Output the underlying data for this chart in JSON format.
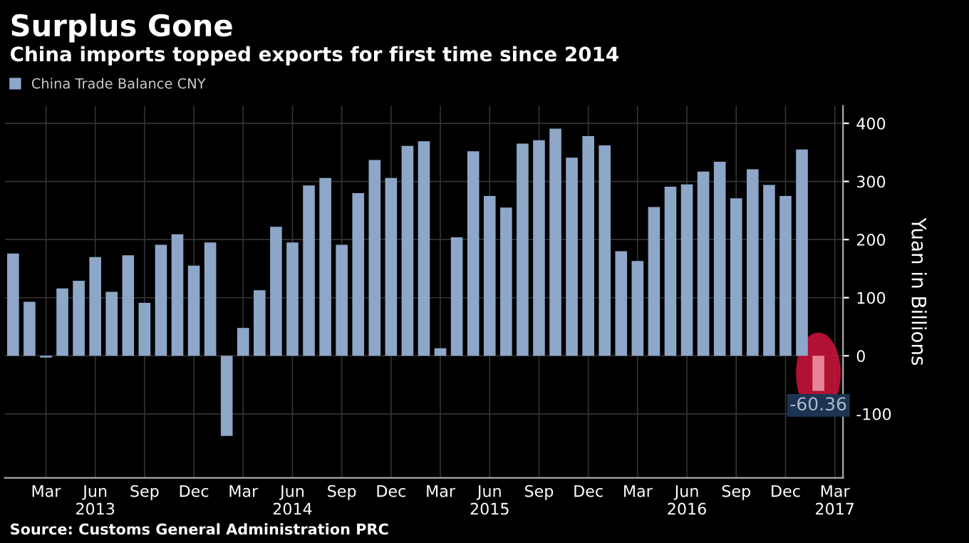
{
  "chart_data": {
    "type": "bar",
    "title": "Surplus Gone",
    "subtitle": "China imports topped exports for first time since 2014",
    "ylabel": "Yuan in Billions",
    "categories": [
      null,
      null,
      "Mar",
      null,
      null,
      "Jun\n2013",
      null,
      null,
      "Sep",
      null,
      null,
      "Dec",
      null,
      null,
      "Mar",
      null,
      null,
      "Jun\n2014",
      null,
      null,
      "Sep",
      null,
      null,
      "Dec",
      null,
      null,
      "Mar",
      null,
      null,
      "Jun\n2015",
      null,
      null,
      "Sep",
      null,
      null,
      "Dec",
      null,
      null,
      "Mar",
      null,
      null,
      "Jun\n2016",
      null,
      null,
      "Sep",
      null,
      null,
      "Dec",
      null,
      null,
      "Mar\n2017"
    ],
    "series": [
      {
        "name": "China Trade Balance CNY",
        "color": "#8ea6c8",
        "colors": [
          "#8ea6c8",
          "#8ea6c8",
          "#8ea6c8",
          "#8ea6c8",
          "#8ea6c8",
          "#8ea6c8",
          "#8ea6c8",
          "#8ea6c8",
          "#8ea6c8",
          "#8ea6c8",
          "#8ea6c8",
          "#8ea6c8",
          "#8ea6c8",
          "#8ea6c8",
          "#8ea6c8",
          "#8ea6c8",
          "#8ea6c8",
          "#8ea6c8",
          "#8ea6c8",
          "#8ea6c8",
          "#8ea6c8",
          "#8ea6c8",
          "#8ea6c8",
          "#8ea6c8",
          "#8ea6c8",
          "#8ea6c8",
          "#8ea6c8",
          "#8ea6c8",
          "#8ea6c8",
          "#8ea6c8",
          "#8ea6c8",
          "#8ea6c8",
          "#8ea6c8",
          "#8ea6c8",
          "#8ea6c8",
          "#8ea6c8",
          "#8ea6c8",
          "#8ea6c8",
          "#8ea6c8",
          "#8ea6c8",
          "#8ea6c8",
          "#8ea6c8",
          "#8ea6c8",
          "#8ea6c8",
          "#8ea6c8",
          "#8ea6c8",
          "#8ea6c8",
          "#8ea6c8",
          "#8ea6c8",
          "#e8849a",
          null
        ],
        "values": [
          176,
          93,
          -3,
          116,
          129,
          170,
          110,
          173,
          91,
          191,
          209,
          155,
          195,
          -138,
          48,
          113,
          222,
          195,
          293,
          306,
          191,
          280,
          337,
          306,
          361,
          369,
          13,
          204,
          352,
          275,
          255,
          365,
          371,
          391,
          341,
          378,
          362,
          180,
          163,
          256,
          291,
          295,
          317,
          334,
          271,
          321,
          294,
          275,
          355,
          -60.36,
          null
        ],
        "value_labels": [
          null,
          null,
          null,
          null,
          null,
          null,
          null,
          null,
          null,
          null,
          null,
          null,
          null,
          null,
          null,
          null,
          null,
          null,
          null,
          null,
          null,
          null,
          null,
          null,
          null,
          null,
          null,
          null,
          null,
          null,
          null,
          null,
          null,
          null,
          null,
          null,
          null,
          null,
          null,
          null,
          null,
          null,
          null,
          null,
          null,
          null,
          null,
          null,
          null,
          "-60.36",
          null
        ]
      }
    ],
    "ylim": [
      -210,
      430
    ],
    "yticks": [
      -100,
      0,
      100,
      200,
      300,
      400
    ],
    "grid": true,
    "legend": "top left",
    "annotations": [
      "Source: Customs General Administration PRC"
    ]
  }
}
